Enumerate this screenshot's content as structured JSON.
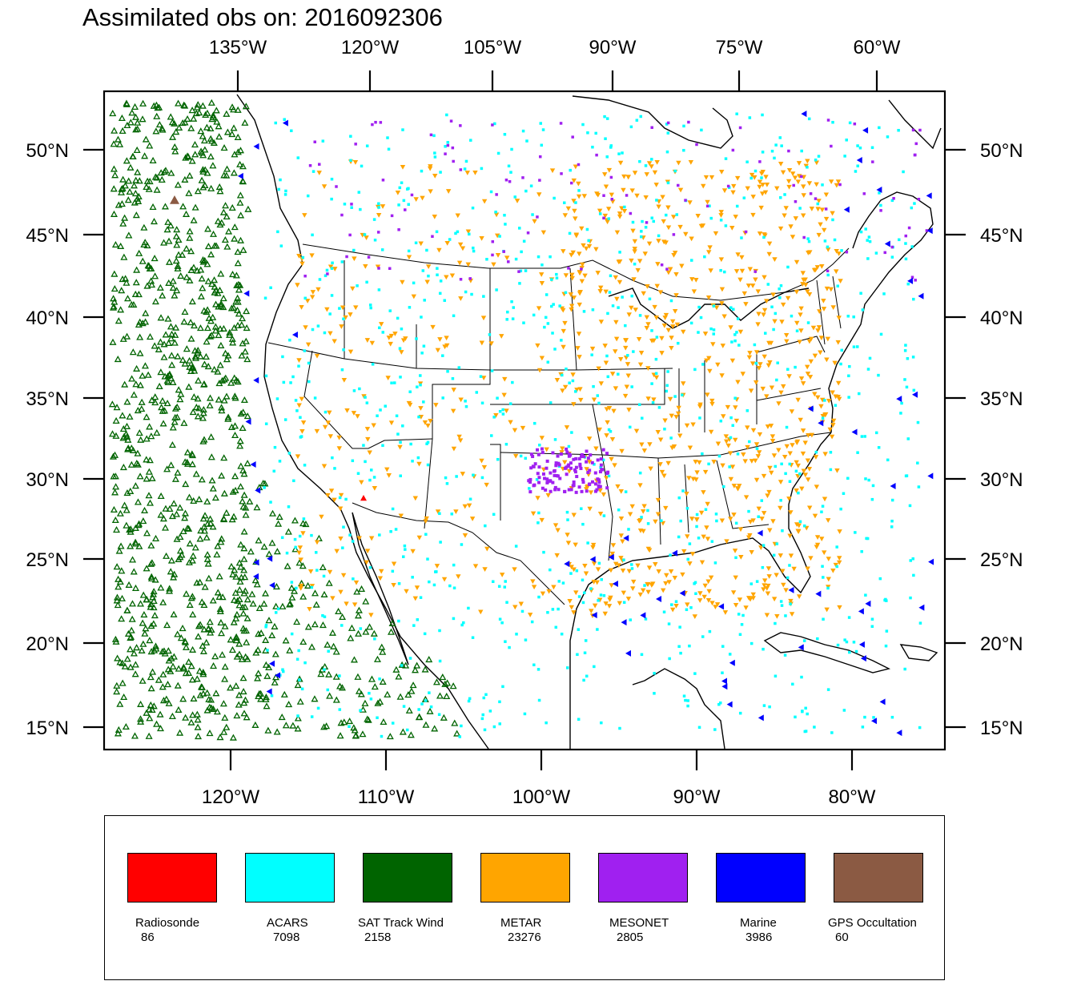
{
  "title": "Assimilated obs on: 2016092306",
  "map": {
    "top_ticks": [
      "135°W",
      "120°W",
      "105°W",
      "90°W",
      "75°W",
      "60°W"
    ],
    "bottom_ticks": [
      "120°W",
      "110°W",
      "100°W",
      "90°W",
      "80°W"
    ],
    "left_ticks": [
      "50°N",
      "45°N",
      "40°N",
      "35°N",
      "30°N",
      "25°N",
      "20°N",
      "15°N"
    ],
    "right_ticks": [
      "50°N",
      "45°N",
      "40°N",
      "35°N",
      "30°N",
      "25°N",
      "20°N",
      "15°N"
    ]
  },
  "legend": [
    {
      "name": "Radiosonde",
      "count": "86",
      "color": "#ff0000"
    },
    {
      "name": "ACARS",
      "count": "7098",
      "color": "#00ffff"
    },
    {
      "name": "SAT Track Wind",
      "count": "2158",
      "color": "#006400"
    },
    {
      "name": "METAR",
      "count": "23276",
      "color": "#ffa500"
    },
    {
      "name": "MESONET",
      "count": "2805",
      "color": "#a020f0"
    },
    {
      "name": "Marine",
      "count": "3986",
      "color": "#0000ff"
    },
    {
      "name": "GPS Occultation",
      "count": "60",
      "color": "#8b5a43"
    }
  ]
}
